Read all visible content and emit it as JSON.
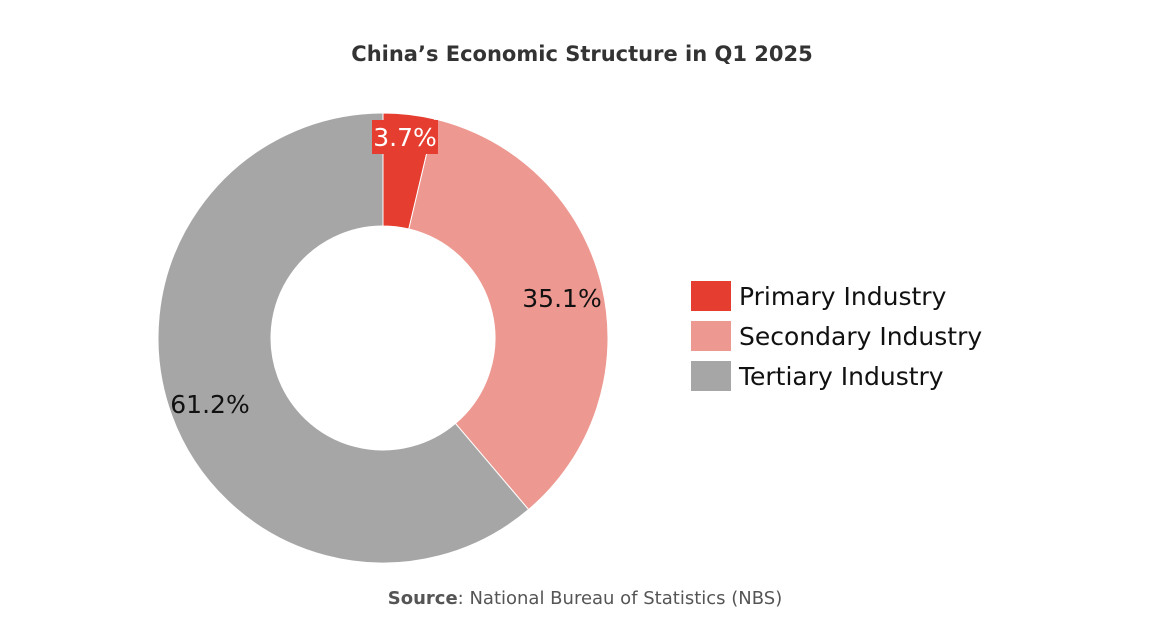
{
  "chart_data": {
    "type": "pie",
    "variant": "donut",
    "title": "China’s Economic Structure in Q1 2025",
    "categories": [
      "Primary Industry",
      "Secondary Industry",
      "Tertiary Industry"
    ],
    "values": [
      3.7,
      35.1,
      61.2
    ],
    "data_labels": [
      "3.7%",
      "35.1%",
      "61.2%"
    ],
    "colors": [
      "#E53E30",
      "#ED9890",
      "#A6A6A6"
    ],
    "legend_position": "right"
  },
  "source": {
    "label": "Source",
    "text": ": National Bureau of Statistics (NBS)"
  }
}
